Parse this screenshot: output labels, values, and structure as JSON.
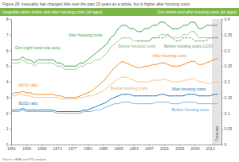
{
  "chart_data": {
    "type": "line",
    "title": "Figure 29: Inequality has changed little over the past 15 years as a whole, but is higher after housing costs",
    "ylabel": "Inequality ratios before and after housing costs (all ages)",
    "y2label": "Gini before and after housing costs (all ages)",
    "source": "Source: HBAI and IFS analysis",
    "x": [
      1961,
      1962,
      1963,
      1964,
      1965,
      1966,
      1967,
      1968,
      1969,
      1970,
      1971,
      1972,
      1973,
      1974,
      1975,
      1976,
      1977,
      1978,
      1979,
      1980,
      1981,
      1982,
      1983,
      1984,
      1985,
      1986,
      1987,
      1988,
      1989,
      1990,
      1991,
      1992,
      1993,
      1994,
      1995,
      1996,
      1997,
      1998,
      1999,
      2000,
      2001,
      2002,
      2003,
      2004,
      2005,
      2006,
      2007,
      2008,
      2009,
      2010,
      2011,
      2012,
      2013,
      2014,
      2015
    ],
    "xlim": [
      1961,
      2016
    ],
    "xticks": [
      1961,
      1965,
      1969,
      1973,
      1977,
      1981,
      1985,
      1989,
      1993,
      1997,
      2001,
      2005,
      2009,
      2013
    ],
    "ylim": [
      0,
      8
    ],
    "yticks": [
      0,
      1,
      2,
      3,
      4,
      5,
      6,
      7,
      8
    ],
    "y2lim": [
      0,
      0.4
    ],
    "y2ticks": [
      0,
      0.05,
      0.1,
      0.15,
      0.2,
      0.25,
      0.3,
      0.35,
      0.4
    ],
    "series": [
      {
        "axis": "y2",
        "color": "#3fa34d",
        "line_style": "solid",
        "values": [
          0.27,
          0.27,
          0.27,
          0.28,
          0.27,
          0.27,
          0.26,
          0.27,
          0.27,
          0.27,
          0.27,
          0.27,
          0.26,
          0.26,
          0.25,
          0.25,
          0.25,
          0.25,
          0.26,
          0.26,
          0.27,
          0.28,
          0.29,
          0.3,
          0.31,
          0.32,
          0.34,
          0.35,
          0.37,
          0.38,
          0.38,
          0.37,
          0.37,
          0.36,
          0.36,
          0.37,
          0.37,
          0.38,
          0.38,
          0.39,
          0.39,
          0.38,
          0.37,
          0.37,
          0.37,
          0.38,
          0.38,
          0.39,
          0.39,
          0.37,
          0.37,
          0.38,
          0.38,
          0.38,
          0.38
        ]
      },
      {
        "axis": "y2",
        "color": "#9ccf8f",
        "line_style": "solid",
        "values": [
          0.26,
          0.26,
          0.26,
          0.27,
          0.26,
          0.26,
          0.25,
          0.26,
          0.26,
          0.26,
          0.26,
          0.26,
          0.25,
          0.25,
          0.24,
          0.24,
          0.24,
          0.24,
          0.25,
          0.25,
          0.26,
          0.26,
          0.27,
          0.27,
          0.28,
          0.29,
          0.31,
          0.32,
          0.33,
          0.34,
          0.34,
          0.34,
          0.33,
          0.33,
          0.33,
          0.33,
          0.33,
          0.34,
          0.34,
          0.35,
          0.35,
          0.35,
          0.34,
          0.34,
          0.34,
          0.35,
          0.35,
          0.36,
          0.36,
          0.34,
          0.34,
          0.34,
          0.34,
          0.34,
          0.34
        ]
      },
      {
        "axis": "y2",
        "color": "#6f8f6f",
        "line_style": "dashed",
        "values": [
          null,
          null,
          null,
          null,
          null,
          null,
          null,
          null,
          null,
          null,
          null,
          null,
          null,
          null,
          null,
          null,
          null,
          null,
          null,
          null,
          null,
          null,
          null,
          null,
          null,
          null,
          null,
          null,
          null,
          null,
          null,
          null,
          null,
          0.33,
          0.33,
          0.33,
          0.33,
          0.34,
          0.34,
          0.34,
          0.34,
          0.35,
          0.34,
          0.33,
          0.33,
          0.34,
          0.34,
          0.34,
          0.33,
          0.33,
          0.33,
          0.33,
          0.34,
          0.34,
          0.34
        ]
      },
      {
        "color": "#f28e2b",
        "line_style": "solid",
        "values": [
          3.2,
          3.3,
          3.3,
          3.4,
          3.3,
          3.3,
          3.2,
          3.2,
          3.2,
          3.2,
          3.2,
          3.2,
          3.1,
          3.1,
          3.0,
          3.0,
          3.0,
          3.0,
          3.1,
          3.2,
          3.3,
          3.4,
          3.6,
          3.8,
          4.0,
          4.3,
          4.6,
          4.9,
          5.1,
          5.3,
          5.2,
          5.1,
          5.0,
          4.9,
          4.9,
          5.0,
          5.0,
          5.1,
          5.1,
          5.2,
          5.2,
          5.1,
          5.0,
          5.0,
          5.0,
          5.1,
          5.2,
          5.3,
          5.3,
          5.1,
          5.1,
          5.2,
          5.3,
          5.4,
          5.5
        ]
      },
      {
        "color": "#f8c38b",
        "line_style": "solid",
        "values": [
          3.1,
          3.1,
          3.2,
          3.2,
          3.1,
          3.1,
          3.0,
          3.0,
          3.0,
          3.0,
          3.0,
          3.0,
          3.0,
          2.9,
          2.9,
          2.9,
          2.9,
          2.9,
          3.0,
          3.0,
          3.1,
          3.1,
          3.2,
          3.3,
          3.4,
          3.6,
          3.8,
          4.0,
          4.2,
          4.3,
          4.3,
          4.2,
          4.1,
          4.0,
          4.0,
          4.0,
          4.0,
          4.1,
          4.1,
          4.1,
          4.2,
          4.1,
          4.0,
          4.0,
          4.0,
          4.1,
          4.1,
          4.2,
          4.2,
          4.0,
          4.0,
          3.9,
          3.9,
          4.0,
          4.0
        ]
      },
      {
        "color": "#1f78b4",
        "line_style": "solid",
        "values": [
          2.2,
          2.2,
          2.2,
          2.3,
          2.2,
          2.2,
          2.2,
          2.2,
          2.2,
          2.2,
          2.2,
          2.2,
          2.1,
          2.1,
          2.1,
          2.1,
          2.1,
          2.1,
          2.1,
          2.2,
          2.2,
          2.3,
          2.4,
          2.5,
          2.6,
          2.7,
          2.9,
          3.0,
          3.1,
          3.2,
          3.2,
          3.2,
          3.1,
          3.1,
          3.1,
          3.1,
          3.1,
          3.1,
          3.1,
          3.2,
          3.2,
          3.1,
          3.1,
          3.1,
          3.1,
          3.1,
          3.2,
          3.2,
          3.2,
          3.1,
          3.1,
          3.1,
          3.1,
          3.2,
          3.2
        ]
      },
      {
        "color": "#7fb8e0",
        "line_style": "solid",
        "values": [
          2.1,
          2.1,
          2.1,
          2.2,
          2.1,
          2.1,
          2.1,
          2.1,
          2.1,
          2.1,
          2.1,
          2.1,
          2.0,
          2.0,
          2.0,
          2.0,
          2.0,
          2.0,
          2.0,
          2.1,
          2.1,
          2.1,
          2.2,
          2.2,
          2.3,
          2.4,
          2.5,
          2.6,
          2.6,
          2.7,
          2.7,
          2.7,
          2.6,
          2.6,
          2.6,
          2.6,
          2.6,
          2.6,
          2.7,
          2.7,
          2.7,
          2.7,
          2.6,
          2.6,
          2.6,
          2.7,
          2.7,
          2.7,
          2.7,
          2.6,
          2.6,
          2.6,
          2.6,
          2.6,
          2.6
        ]
      }
    ],
    "annotations": [
      {
        "text": "Gini (right hand side axis)",
        "x": 1962,
        "y": 0.305,
        "axis": "y2",
        "color": "#3fa34d"
      },
      {
        "text": "After housing costs",
        "x": 1976,
        "y": 0.345,
        "axis": "y2",
        "color": "#3fa34d"
      },
      {
        "text": "Before housing costs",
        "x": 1989,
        "y": 0.31,
        "axis": "y2",
        "color": "#7cb86f"
      },
      {
        "text": "Before housing costs (LCF)",
        "x": 2001,
        "y": 0.31,
        "axis": "y2",
        "color": "#6f8f6f"
      },
      {
        "text": "90/10 ratio",
        "x": 1963,
        "y": 3.7,
        "color": "#f28e2b"
      },
      {
        "text": "After housing costs",
        "x": 1998,
        "y": 5.55,
        "color": "#f28e2b"
      },
      {
        "text": "Before housing costs",
        "x": 1987,
        "y": 3.5,
        "color": "#eaa55c"
      },
      {
        "text": "80/20 ratio",
        "x": 1963,
        "y": 2.55,
        "color": "#1f78b4"
      },
      {
        "text": "After housing costs",
        "x": 2003,
        "y": 3.45,
        "color": "#1f78b4"
      },
      {
        "text": "Before housing costs",
        "x": 2003,
        "y": 2.15,
        "color": "#5fa3d3"
      }
    ],
    "shaded": {
      "label": "Forecast",
      "x": [
        2013.5,
        2016
      ]
    }
  }
}
